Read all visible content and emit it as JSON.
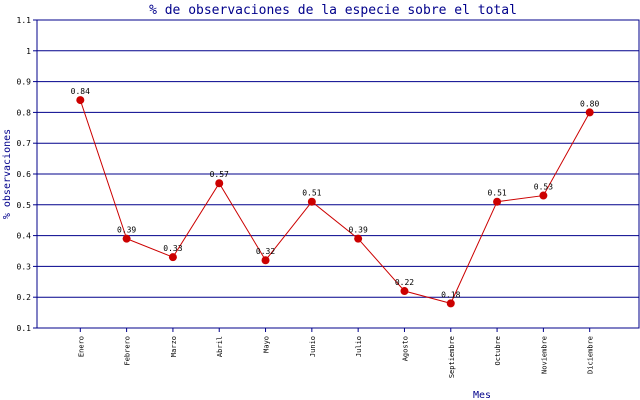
{
  "chart_data": {
    "type": "line",
    "title": "% de observaciones de la especie sobre el total",
    "xlabel": "Mes",
    "ylabel": "% observaciones",
    "categories": [
      "Enero",
      "Febrero",
      "Marzo",
      "Abril",
      "Mayo",
      "Junio",
      "Julio",
      "Agosto",
      "Septiembre",
      "Octubre",
      "Noviembre",
      "Diciembre"
    ],
    "values": [
      0.84,
      0.39,
      0.33,
      0.57,
      0.32,
      0.51,
      0.39,
      0.22,
      0.18,
      0.51,
      0.53,
      0.8
    ],
    "value_labels": [
      "0.84",
      "0.39",
      "0.33",
      "0.57",
      "0.32",
      "0.51",
      "0.39",
      "0.22",
      "0.18",
      "0.51",
      "0.53",
      "0.80"
    ],
    "ylim": [
      0.1,
      1.1
    ],
    "yticks": [
      "0.1",
      "0.2",
      "0.3",
      "0.4",
      "0.5",
      "0.6",
      "0.7",
      "0.8",
      "0.9",
      "1",
      "1.1"
    ],
    "grid": true,
    "colors": {
      "line": "#cc0000",
      "marker": "#cc0000",
      "grid": "#00008b",
      "frame": "#00008b",
      "text": "#00008b"
    }
  }
}
